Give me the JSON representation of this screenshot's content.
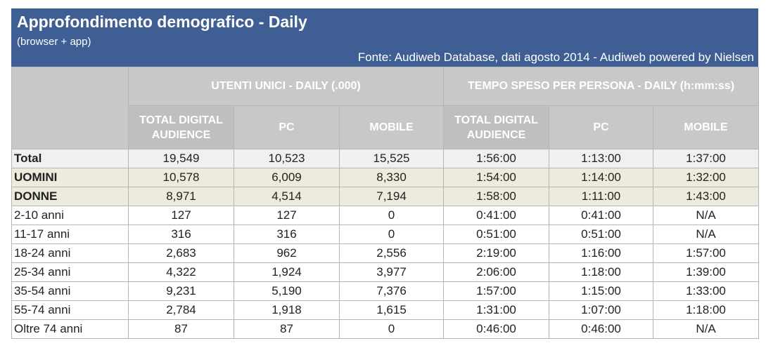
{
  "header": {
    "title": "Approfondimento demografico - Daily",
    "subtitle": "(browser + app)",
    "source": "Fonte: Audiweb Database, dati agosto 2014 - Audiweb powered by Nielsen"
  },
  "groups": {
    "utenti": "UTENTI UNICI - DAILY (.000)",
    "tempo": "TEMPO SPESO PER PERSONA - DAILY (h:mm:ss)"
  },
  "columns": {
    "c1": "TOTAL DIGITAL AUDIENCE",
    "c2": "PC",
    "c3": "MOBILE",
    "c4": "TOTAL DIGITAL AUDIENCE",
    "c5": "PC",
    "c6": "MOBILE"
  },
  "rows": [
    {
      "label": "Total",
      "v": [
        "19,549",
        "10,523",
        "15,525",
        "1:56:00",
        "1:13:00",
        "1:37:00"
      ]
    },
    {
      "label": "UOMINI",
      "v": [
        "10,578",
        "6,009",
        "8,330",
        "1:54:00",
        "1:14:00",
        "1:32:00"
      ]
    },
    {
      "label": "DONNE",
      "v": [
        "8,971",
        "4,514",
        "7,194",
        "1:58:00",
        "1:11:00",
        "1:43:00"
      ]
    },
    {
      "label": "2-10 anni",
      "v": [
        "127",
        "127",
        "0",
        "0:41:00",
        "0:41:00",
        "N/A"
      ]
    },
    {
      "label": "11-17 anni",
      "v": [
        "316",
        "316",
        "0",
        "0:51:00",
        "0:51:00",
        "N/A"
      ]
    },
    {
      "label": "18-24 anni",
      "v": [
        "2,683",
        "962",
        "2,556",
        "2:19:00",
        "1:16:00",
        "1:57:00"
      ]
    },
    {
      "label": "25-34 anni",
      "v": [
        "4,322",
        "1,924",
        "3,977",
        "2:06:00",
        "1:18:00",
        "1:39:00"
      ]
    },
    {
      "label": "35-54 anni",
      "v": [
        "9,231",
        "5,190",
        "7,376",
        "1:57:00",
        "1:15:00",
        "1:33:00"
      ]
    },
    {
      "label": "55-74 anni",
      "v": [
        "2,784",
        "1,918",
        "1,615",
        "1:31:00",
        "1:07:00",
        "1:18:00"
      ]
    },
    {
      "label": "Oltre 74 anni",
      "v": [
        "87",
        "87",
        "0",
        "0:46:00",
        "0:46:00",
        "N/A"
      ]
    }
  ]
}
